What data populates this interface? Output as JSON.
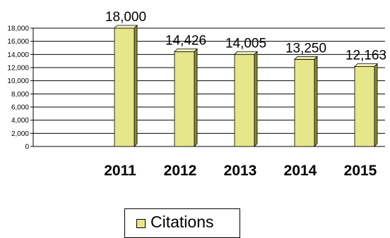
{
  "chart_data": {
    "type": "bar",
    "categories": [
      "2011",
      "2012",
      "2013",
      "2014",
      "2015"
    ],
    "series": [
      {
        "name": "Citations",
        "values": [
          18000,
          14426,
          14005,
          13250,
          12163
        ]
      }
    ],
    "data_labels": [
      "18,000",
      "14,426",
      "14,005",
      "13,250",
      "12,163"
    ],
    "y_ticks": [
      "0",
      "2,000",
      "4,000",
      "6,000",
      "8,000",
      "10,000",
      "12,000",
      "14,000",
      "16,000",
      "18,000"
    ],
    "ylim": [
      0,
      18000
    ],
    "grid": true,
    "legend_position": "bottom",
    "colors": {
      "bar_front": "#e6e68a",
      "bar_side": "#8c8c3c",
      "bar_top": "#f3f3c0"
    }
  }
}
